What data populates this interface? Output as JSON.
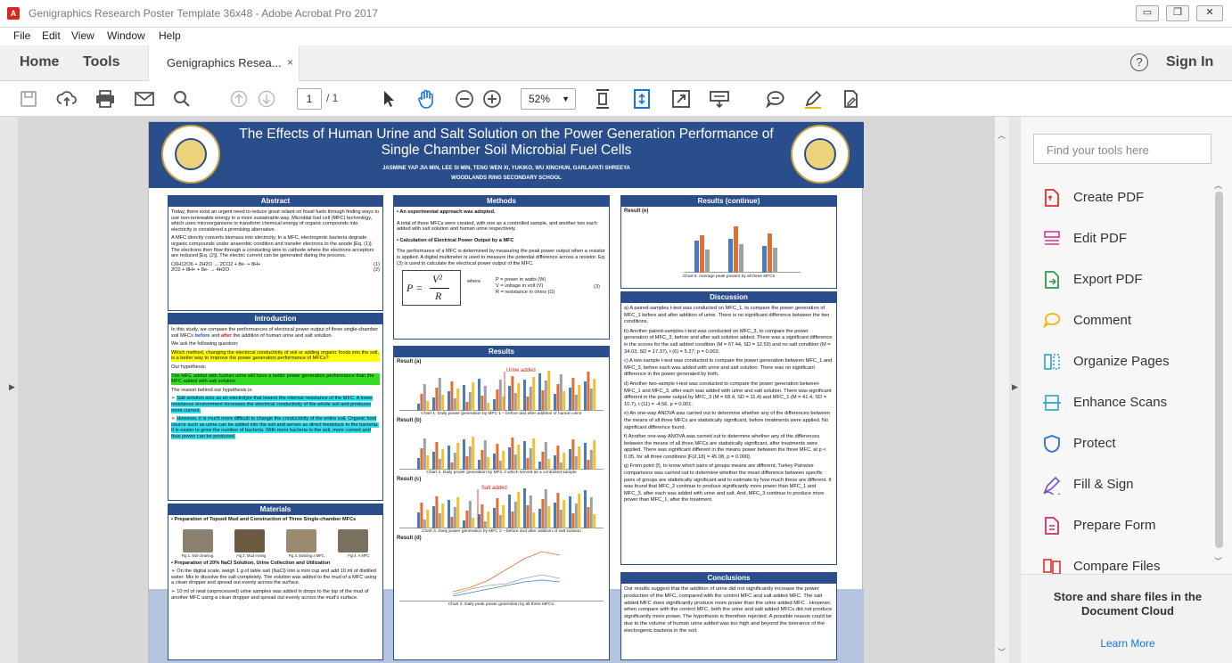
{
  "window": {
    "title": "Genigraphics Research Poster Template 36x48 - Adobe Acrobat Pro 2017",
    "controls": [
      "▭",
      "❐",
      "✕"
    ]
  },
  "menu": [
    "File",
    "Edit",
    "View",
    "Window",
    "Help"
  ],
  "tabs": {
    "home": "Home",
    "tools": "Tools",
    "document": "Genigraphics Resea...",
    "close": "×",
    "help": "?",
    "signin": "Sign In"
  },
  "toolbar": {
    "page_current": "1",
    "page_total": "/ 1",
    "zoom": "52%"
  },
  "right_pane": {
    "search_placeholder": "Find your tools here",
    "tools": [
      {
        "label": "Create PDF",
        "icon": "create-pdf-icon",
        "color": "#e0302c"
      },
      {
        "label": "Edit PDF",
        "icon": "edit-pdf-icon",
        "color": "#d6398f"
      },
      {
        "label": "Export PDF",
        "icon": "export-pdf-icon",
        "color": "#2d9a4a"
      },
      {
        "label": "Comment",
        "icon": "comment-icon",
        "color": "#f0b400"
      },
      {
        "label": "Organize Pages",
        "icon": "organize-pages-icon",
        "color": "#27a3c9"
      },
      {
        "label": "Enhance Scans",
        "icon": "enhance-scans-icon",
        "color": "#27a3c9"
      },
      {
        "label": "Protect",
        "icon": "protect-icon",
        "color": "#2a6fd6"
      },
      {
        "label": "Fill & Sign",
        "icon": "fill-sign-icon",
        "color": "#7a4fc9"
      },
      {
        "label": "Prepare Form",
        "icon": "prepare-form-icon",
        "color": "#c9306e"
      },
      {
        "label": "Compare Files",
        "icon": "compare-files-icon",
        "color": "#e0302c"
      }
    ],
    "cloud_title": "Store and share files in the Document Cloud",
    "cloud_link": "Learn More"
  },
  "poster": {
    "title": "The Effects of Human Urine and Salt Solution on the Power Generation Performance of Single Chamber Soil Microbial Fuel Cells",
    "authors": "JASMINE YAP JIA MIN, LEE SI MIN, TENG WEN XI, YUKIKO, WU XINCHUN, GARLAPATI SHREEYA",
    "school": "WOODLANDS RING SECONDARY SCHOOL",
    "logo_text": "WRSS",
    "abstract": {
      "heading": "Abstract",
      "p1": "Today, there exist an urgent need to reduce great reliant on fossil fuels through finding ways to use non-renewable energy in a more sustainable way. Microbial fuel cell (MFC) technology, which uses microorganisms to transform chemical energy of organic compounds into electricity is considered a promising alternative.",
      "p2": "A MFC directly converts biomass into electricity. In a MFC, electrogenic bacteria degrade organic compounds under anaerobic condition and transfer electrons to the anode [Eq. (1)]. The electrons then flow through a conducting wire to cathode where the electrons acceptors are reduced [Eq. (2)]. The electric current can be generated during the process.",
      "eq1": "C6H12O6 + 2H2O → 2CO2 + 8e- + 8H+",
      "eq1_num": "(1)",
      "eq2": "2O2 + 8H+ + 8e- → 4H2O",
      "eq2_num": "(2)"
    },
    "introduction": {
      "heading": "Introduction",
      "p1a": "In this study, we compare the performances of electrical power output of three single-chamber soil MFCs",
      "p1b": "before",
      "p1c": "and",
      "p1d": "after",
      "p1e": "the addition of human urine and salt solution.",
      "p2": "We ask the following question:",
      "question": "Which method, changing the electrical conductivity of soil or adding organic foods into the soil, is a better way to improve the power generation performance of MFCs?",
      "p3": "Our hypothesis:",
      "hypothesis": "The MFC added with human urine will have a better power generation performance than the MFC added with salt solution.",
      "p4": "The reason behind our hypothesis is:",
      "reason1": "Salt solution acts as an electrolyte that lowers the internal resistance of the MFC. A lower resistance environment increases the electrical conductivity of the whole soil and produces more current.",
      "reason2": "However, it is much more difficult to change the conductivity of the entire soil. Organic food source such as urine can be added into the soil and serves as direct feedstock to the bacteria. It is easier to grow the number of bacteria. With more bacteria in the soil, more current and thus power can be produced."
    },
    "materials": {
      "heading": "Materials",
      "b1": "Preparation of Topsoil Mud and Construction of Three Single-chamber MFCs",
      "photo_caps": [
        "Fig 1. Soil cleaning.",
        "Fig 2. Mud mixing",
        "Fig 3. Building a MFC.",
        "Fig 4. A MFC"
      ],
      "b2": "Preparation of 20% NaCl Solution, Urine Collection and Utilization",
      "b3": "On the digital scale, weigh 1 g of table salt (NaCl) into a mini cup and add 10 ml of distilled water. Mix to dissolve the salt completely. The solution was added to the mud of a MFC using a clean dropper and spread out evenly across the surface.",
      "b4": "10 ml of neat (unprocessed) urine samples was added in drops to the top of the mud of another MFC using a clean dropper and spread out evenly across the mud's surface."
    },
    "methods": {
      "heading": "Methods",
      "b1": "An experimental approach was adopted.",
      "p1": "A total of three MFCs were created, with one as a controlled sample, and another two each added with salt solution and human urine respectively.",
      "b2": "Calculation of Electrical Power Output by a MFC",
      "p2": "The performance of a MFC is determined by measuring the peak power output when a resistor is applied. A digital multimeter is used to measure the potential difference across a resistor. Eq. (3) is used to calculate the electrical power output of the MFC.",
      "formula_lhs": "P =",
      "formula_num": "V²",
      "formula_den": "R",
      "where": "where",
      "def_p": "P = power in watts (W)",
      "def_v": "V = voltage in volt (V)",
      "def_r": "R = resistance in ohms (Ω)",
      "eq_num": "(3)"
    },
    "results": {
      "heading": "Results",
      "a_label": "Result (a)",
      "a_note": "Urine added",
      "a_cap": "Chart 1. Daily power generation by MFC 1 – before and after addition of human urine",
      "b_label": "Result (b)",
      "b_cap": "Chart 2. Daily power generation by MFC 2 which served as a controlled sample",
      "c_label": "Result (c)",
      "c_note": "Salt added",
      "c_cap": "Chart 3. Daily power generation by MFC 2 – before and after addition of salt solution",
      "d_label": "Result (d)",
      "d_cap": "Chart 4. Daily peak power generation by all three MFCs."
    },
    "results_continue": {
      "heading": "Results (continue)",
      "e_label": "Result (e)",
      "e_cap": "Chart 5. Average peak powers by all three MFCs"
    },
    "discussion": {
      "heading": "Discussion",
      "items": [
        "a)  A paired-samples t-test was conducted on MFC_1, to compare the power generation of MFC_1 before and after addition of urine. There is no significant difference between the two conditions.",
        "b)  Another paired-samples t-test was conducted on MFC_3, to compare the power generation of MFC_3, before and after salt solution added. There was a significant difference in the scores for the salt added condition (M = 67.44, SD = 12.59) and no salt condition (M = 34.03, SD = 17.37), t (6) = 5.27; p = 0.002.",
        "c)  A two-sample t-test was conducted to compare the power generation between MFC_1 and MFC_3, before each was added with urine and salt solution. There was no significant difference in the power generated by both.",
        "d)  Another two-sample t-test was conducted to compare the power generation between MFC_1 and MFC_3, after each was added with urine and salt solution. There was significant different in the power output by MFC_3 (M = 68.4, SD = 11.4) and MFC_1 (M = 41.4, SD = 10.7), t (11) = -4.56, p = 0.001.",
        "e)  An one-way ANOVA was carried out to determine whether any of the differences between the means of all three MFCs are statistically significant, before treatments were applied. No significant difference found.",
        "f)  Another one-way ANOVA was carried out to determine whether any of the differences between the means of all three MFCs are statistically significant, after treatments were applied. There was significant different in the means power between the three MFC, at p < 0.05, for all three conditions [F(2,18) = 45.08, p = 0.000].",
        "g)  From point (f), to know which pairs of groups means are different, Turkey Pairwise comparisons was carried out to determine whether the mean difference between specific pairs of groups are statistically significant and to estimate by how much these are different. It was found that MFC_2 continue to produce significantly more power than MFC_1 and MFC_3, after each was added with urine and salt. And, MFC_3 continue to produce more power than MFC_1, after the treatment."
      ]
    },
    "conclusions": {
      "heading": "Conclusions",
      "text": "Our results suggest that the addition of urine did not significantly increase the power production of the MFC, compared with the control MFC and salt added MFC. The salt added MFC does significantly produce more power than the urine added MFC . However, when compare with the control MFC, both the urine and salt added MFCs did not produce significantly more power. The hypothesis is therefore rejected. A possible reason could be due to the volume of human urine added was too high and beyond the tolerance of the electrogenic bacteria in the soil."
    }
  }
}
